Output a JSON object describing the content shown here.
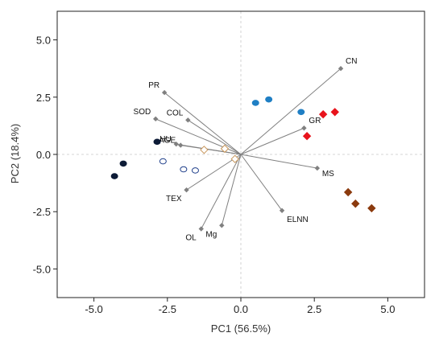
{
  "chart_data": {
    "type": "scatter",
    "subtype": "pca-biplot",
    "xlabel": "PC1 (56.5%)",
    "ylabel": "PC2 (18.4%)",
    "xlim": [
      -6.25,
      6.25
    ],
    "ylim": [
      -6.25,
      6.25
    ],
    "xticks": [
      -5.0,
      -2.5,
      0.0,
      2.5,
      5.0
    ],
    "yticks": [
      -5.0,
      -2.5,
      0.0,
      2.5,
      5.0
    ],
    "xtick_labels": [
      "-5.0",
      "-2.5",
      "0.0",
      "2.5",
      "5.0"
    ],
    "ytick_labels": [
      "-5.0",
      "-2.5",
      "0.0",
      "2.5",
      "5.0"
    ],
    "origin_crosshair": true,
    "grid": false,
    "vector_color": "#808080",
    "vectors": [
      {
        "label": "CN",
        "x": 3.4,
        "y": 3.75
      },
      {
        "label": "PR",
        "x": -2.6,
        "y": 2.7
      },
      {
        "label": "SOD",
        "x": -2.9,
        "y": 1.55
      },
      {
        "label": "COL",
        "x": -1.8,
        "y": 1.5
      },
      {
        "label": "GR",
        "x": 2.15,
        "y": 1.15
      },
      {
        "label": "AGE",
        "x": -2.05,
        "y": 0.4
      },
      {
        "label": "HU",
        "x": -2.2,
        "y": 0.45
      },
      {
        "label": "MS",
        "x": 2.6,
        "y": -0.6
      },
      {
        "label": "TEX",
        "x": -1.85,
        "y": -1.55
      },
      {
        "label": "ELNN",
        "x": 1.4,
        "y": -2.45
      },
      {
        "label": "Mg",
        "x": -0.65,
        "y": -3.1
      },
      {
        "label": "OL",
        "x": -1.35,
        "y": -3.25
      }
    ],
    "groups": [
      {
        "marker": "circle",
        "color": "#0d1b36",
        "filled": true,
        "points": [
          {
            "x": -4.0,
            "y": -0.4
          },
          {
            "x": -4.3,
            "y": -0.95
          },
          {
            "x": -2.85,
            "y": 0.55
          }
        ]
      },
      {
        "marker": "circle",
        "color": "#1f3f8a",
        "filled": false,
        "points": [
          {
            "x": -2.65,
            "y": -0.3
          },
          {
            "x": -1.95,
            "y": -0.65
          },
          {
            "x": -1.55,
            "y": -0.7
          }
        ]
      },
      {
        "marker": "diamond",
        "color": "#c8965a",
        "filled": false,
        "points": [
          {
            "x": -1.25,
            "y": 0.2
          },
          {
            "x": -0.55,
            "y": 0.25
          },
          {
            "x": -0.2,
            "y": -0.2
          }
        ]
      },
      {
        "marker": "circle",
        "color": "#1f7fc4",
        "filled": true,
        "points": [
          {
            "x": 0.5,
            "y": 2.25
          },
          {
            "x": 0.95,
            "y": 2.4
          },
          {
            "x": 2.05,
            "y": 1.85
          }
        ]
      },
      {
        "marker": "diamond",
        "color": "#e8141c",
        "filled": true,
        "points": [
          {
            "x": 2.25,
            "y": 0.8
          },
          {
            "x": 2.8,
            "y": 1.75
          },
          {
            "x": 3.2,
            "y": 1.85
          }
        ]
      },
      {
        "marker": "diamond",
        "color": "#8b3a0e",
        "filled": true,
        "points": [
          {
            "x": 3.65,
            "y": -1.65
          },
          {
            "x": 3.9,
            "y": -2.15
          },
          {
            "x": 4.45,
            "y": -2.35
          }
        ]
      }
    ]
  }
}
